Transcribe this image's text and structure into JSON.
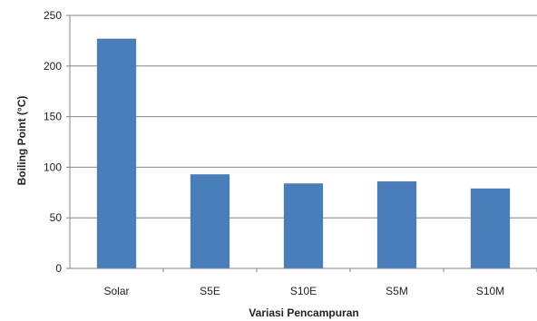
{
  "chart_data": {
    "type": "bar",
    "title": "",
    "xlabel": "Variasi Pencampuran",
    "ylabel": "Boiling Point (°C)",
    "categories": [
      "Solar",
      "S5E",
      "S10E",
      "S5M",
      "S10M"
    ],
    "values": [
      227,
      93,
      84,
      86,
      79
    ],
    "ylim": [
      0,
      250
    ],
    "yticks": [
      0,
      50,
      100,
      150,
      200,
      250
    ],
    "grid": true,
    "legend": "none",
    "bar_color": "#4a7ebb"
  }
}
